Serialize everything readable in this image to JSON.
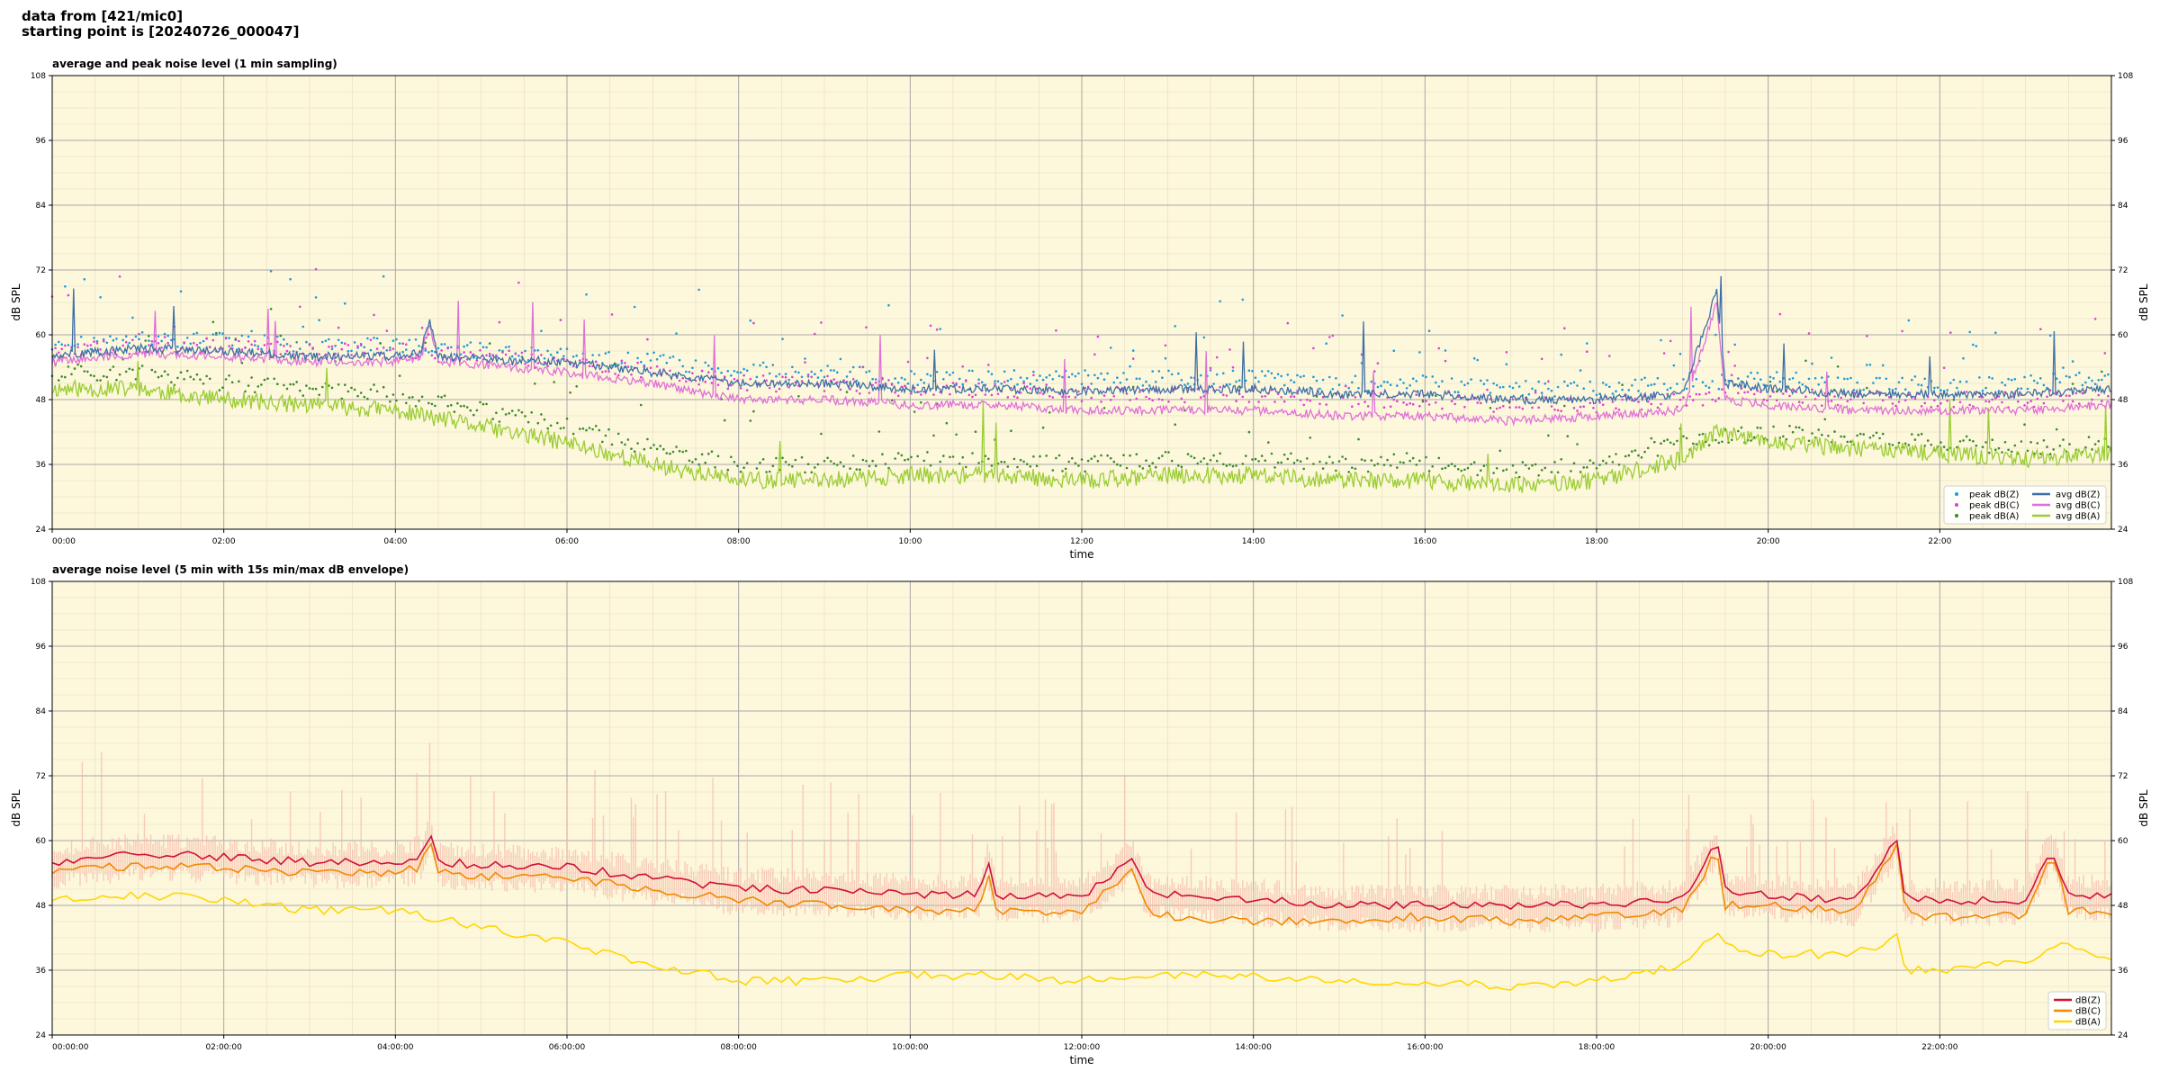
{
  "header": {
    "line1": "data from [421/mic0]",
    "line2": "starting point is [20240726_000047]"
  },
  "colors": {
    "background": "#fdf7dc",
    "peak_z": "#1f9bd6",
    "peak_c": "#e040d0",
    "peak_a": "#3a8a2a",
    "avg_z": "#3d6fa6",
    "avg_c": "#e070d8",
    "avg_a": "#9acd32",
    "dbz": "#d0103a",
    "dbc": "#f08a00",
    "dba": "#ffd700",
    "envelope": "#f5b8a8"
  },
  "chart_data": [
    {
      "type": "line",
      "title": "average and peak noise level (1 min sampling)",
      "xlabel": "time",
      "ylabel": "dB SPL",
      "ylim": [
        24,
        108
      ],
      "xlim_hours": [
        0,
        24
      ],
      "yticks": [
        "24",
        "36",
        "48",
        "60",
        "72",
        "84",
        "96",
        "108"
      ],
      "xticks": [
        "00:00",
        "02:00",
        "04:00",
        "06:00",
        "08:00",
        "10:00",
        "12:00",
        "14:00",
        "16:00",
        "18:00",
        "20:00",
        "22:00"
      ],
      "grid": true,
      "legend_position": "bottom-right",
      "legend": [
        "peak dB(Z)",
        "peak dB(C)",
        "peak dB(A)",
        "avg dB(Z)",
        "avg dB(C)",
        "avg dB(A)"
      ],
      "series": [
        {
          "name": "avg dB(Z)",
          "style": "line",
          "hours": [
            0,
            1,
            2,
            3,
            4,
            4.3,
            4.4,
            4.5,
            5,
            6,
            7,
            8,
            9,
            10,
            11,
            12,
            13,
            14,
            15,
            16,
            17,
            18,
            19,
            19.4,
            19.5,
            20,
            21,
            22,
            23,
            24
          ],
          "values": [
            56,
            57.5,
            57,
            56,
            56,
            57,
            63,
            56,
            55.5,
            55,
            53,
            51,
            51,
            50,
            50,
            49.5,
            50,
            50,
            49,
            49,
            48,
            48,
            49,
            68,
            51,
            50,
            49,
            49,
            49,
            50
          ]
        },
        {
          "name": "avg dB(C)",
          "style": "line",
          "hours": [
            0,
            1,
            2,
            3,
            4,
            4.3,
            4.4,
            4.5,
            5,
            6,
            7,
            8,
            9,
            10,
            11,
            12,
            13,
            14,
            15,
            16,
            17,
            18,
            19,
            19.4,
            19.5,
            20,
            21,
            22,
            23,
            24
          ],
          "values": [
            55,
            56.5,
            56,
            55,
            55,
            56,
            62,
            55,
            54.5,
            53,
            51,
            48,
            48,
            47,
            47,
            46,
            46,
            46,
            45,
            45,
            44,
            45,
            46,
            66,
            48,
            47,
            46,
            46,
            46,
            47
          ]
        },
        {
          "name": "avg dB(A)",
          "style": "line",
          "hours": [
            0,
            1,
            2,
            3,
            4,
            5,
            6,
            7,
            8,
            9,
            10,
            11,
            12,
            13,
            14,
            15,
            16,
            17,
            18,
            19,
            19.4,
            20,
            21,
            22,
            23,
            24
          ],
          "values": [
            50,
            50,
            48,
            47,
            46,
            43,
            40,
            36,
            33,
            33,
            34,
            34,
            33,
            34,
            34,
            33,
            33,
            32,
            33,
            37,
            42,
            40,
            39,
            38,
            37,
            38
          ]
        },
        {
          "name": "peak dB(Z)",
          "style": "points",
          "hours": [
            0,
            1,
            2,
            3,
            4,
            5,
            6,
            7,
            8,
            9,
            10,
            11,
            12,
            13,
            14,
            15,
            16,
            17,
            18,
            19,
            20,
            21,
            22,
            23,
            24
          ],
          "values": [
            58,
            59,
            59,
            58,
            58,
            57,
            56,
            55,
            53,
            53,
            52,
            52,
            52,
            52,
            52,
            51,
            51,
            50,
            50,
            51,
            52,
            51,
            51,
            51,
            52
          ]
        },
        {
          "name": "peak dB(C)",
          "style": "points",
          "hours": [
            0,
            1,
            2,
            3,
            4,
            5,
            6,
            7,
            8,
            9,
            10,
            11,
            12,
            13,
            14,
            15,
            16,
            17,
            18,
            19,
            20,
            21,
            22,
            23,
            24
          ],
          "values": [
            57,
            58,
            58,
            57,
            57,
            56,
            55,
            53,
            51,
            51,
            50,
            50,
            49,
            49,
            49,
            48,
            48,
            47,
            47,
            48,
            49,
            48,
            48,
            48,
            49
          ]
        },
        {
          "name": "peak dB(A)",
          "style": "points",
          "hours": [
            0,
            1,
            2,
            3,
            4,
            5,
            6,
            7,
            8,
            9,
            10,
            11,
            12,
            13,
            14,
            15,
            16,
            17,
            18,
            19,
            20,
            21,
            22,
            23,
            24
          ],
          "values": [
            53,
            53,
            51,
            50,
            49,
            46,
            43,
            39,
            36,
            36,
            37,
            37,
            36,
            37,
            37,
            36,
            36,
            35,
            36,
            40,
            42,
            41,
            40,
            39,
            40
          ]
        }
      ]
    },
    {
      "type": "line",
      "title": "average noise level (5 min with 15s min/max dB envelope)",
      "xlabel": "time",
      "ylabel": "dB SPL",
      "ylim": [
        24,
        108
      ],
      "xlim_hours": [
        0,
        24
      ],
      "yticks": [
        "24",
        "36",
        "48",
        "60",
        "72",
        "84",
        "96",
        "108"
      ],
      "xticks": [
        "00:00:00",
        "02:00:00",
        "04:00:00",
        "06:00:00",
        "08:00:00",
        "10:00:00",
        "12:00:00",
        "14:00:00",
        "16:00:00",
        "18:00:00",
        "20:00:00",
        "22:00:00"
      ],
      "grid": true,
      "legend_position": "bottom-right",
      "legend": [
        "dB(Z)",
        "dB(C)",
        "dB(A)"
      ],
      "series": [
        {
          "name": "dB(Z)",
          "hours": [
            0,
            1,
            2,
            3,
            4,
            4.3,
            4.4,
            4.5,
            5,
            6,
            7,
            8,
            9,
            10,
            10.8,
            10.9,
            11,
            12,
            12.6,
            12.7,
            12.8,
            13,
            14,
            15,
            16,
            17,
            18,
            19,
            19.4,
            19.5,
            20,
            21,
            21.5,
            21.6,
            22,
            23,
            23.3,
            23.5,
            24
          ],
          "values": [
            56,
            57.5,
            57,
            56,
            56,
            57,
            62,
            56,
            55.5,
            55,
            53,
            51,
            51,
            50,
            50,
            57,
            50,
            49.5,
            57,
            52,
            50,
            50,
            49,
            48,
            48,
            48,
            48,
            49,
            60,
            51,
            50,
            49,
            60,
            49,
            49,
            49,
            59,
            50,
            50
          ]
        },
        {
          "name": "dB(C)",
          "hours": [
            0,
            1,
            2,
            3,
            4,
            4.3,
            4.4,
            4.5,
            5,
            6,
            7,
            8,
            9,
            10,
            10.8,
            10.9,
            11,
            12,
            12.6,
            12.7,
            12.8,
            13,
            14,
            15,
            16,
            17,
            18,
            19,
            19.4,
            19.5,
            20,
            21,
            21.5,
            21.6,
            22,
            23,
            23.3,
            23.5,
            24
          ],
          "values": [
            54,
            55.5,
            55,
            54,
            54,
            55,
            61,
            54,
            53.5,
            53,
            51,
            49,
            48,
            47,
            47,
            55,
            47,
            47,
            55,
            49,
            47,
            46,
            45,
            45,
            46,
            45,
            46,
            47,
            58,
            48,
            48,
            47,
            59,
            46,
            46,
            46,
            58,
            47,
            47
          ]
        },
        {
          "name": "dB(A)",
          "hours": [
            0,
            1,
            2,
            3,
            4,
            5,
            6,
            7,
            8,
            9,
            10,
            11,
            12,
            13,
            14,
            15,
            16,
            17,
            18,
            19,
            19.4,
            19.6,
            20,
            21,
            21.5,
            21.6,
            22,
            23,
            23.5,
            24
          ],
          "values": [
            49,
            50,
            49,
            47,
            47,
            44,
            41,
            37,
            34,
            34,
            35,
            35,
            34,
            35,
            35,
            34,
            34,
            33,
            34,
            37,
            43,
            40,
            39,
            39,
            42,
            36,
            36,
            38,
            41,
            38
          ]
        }
      ]
    }
  ]
}
